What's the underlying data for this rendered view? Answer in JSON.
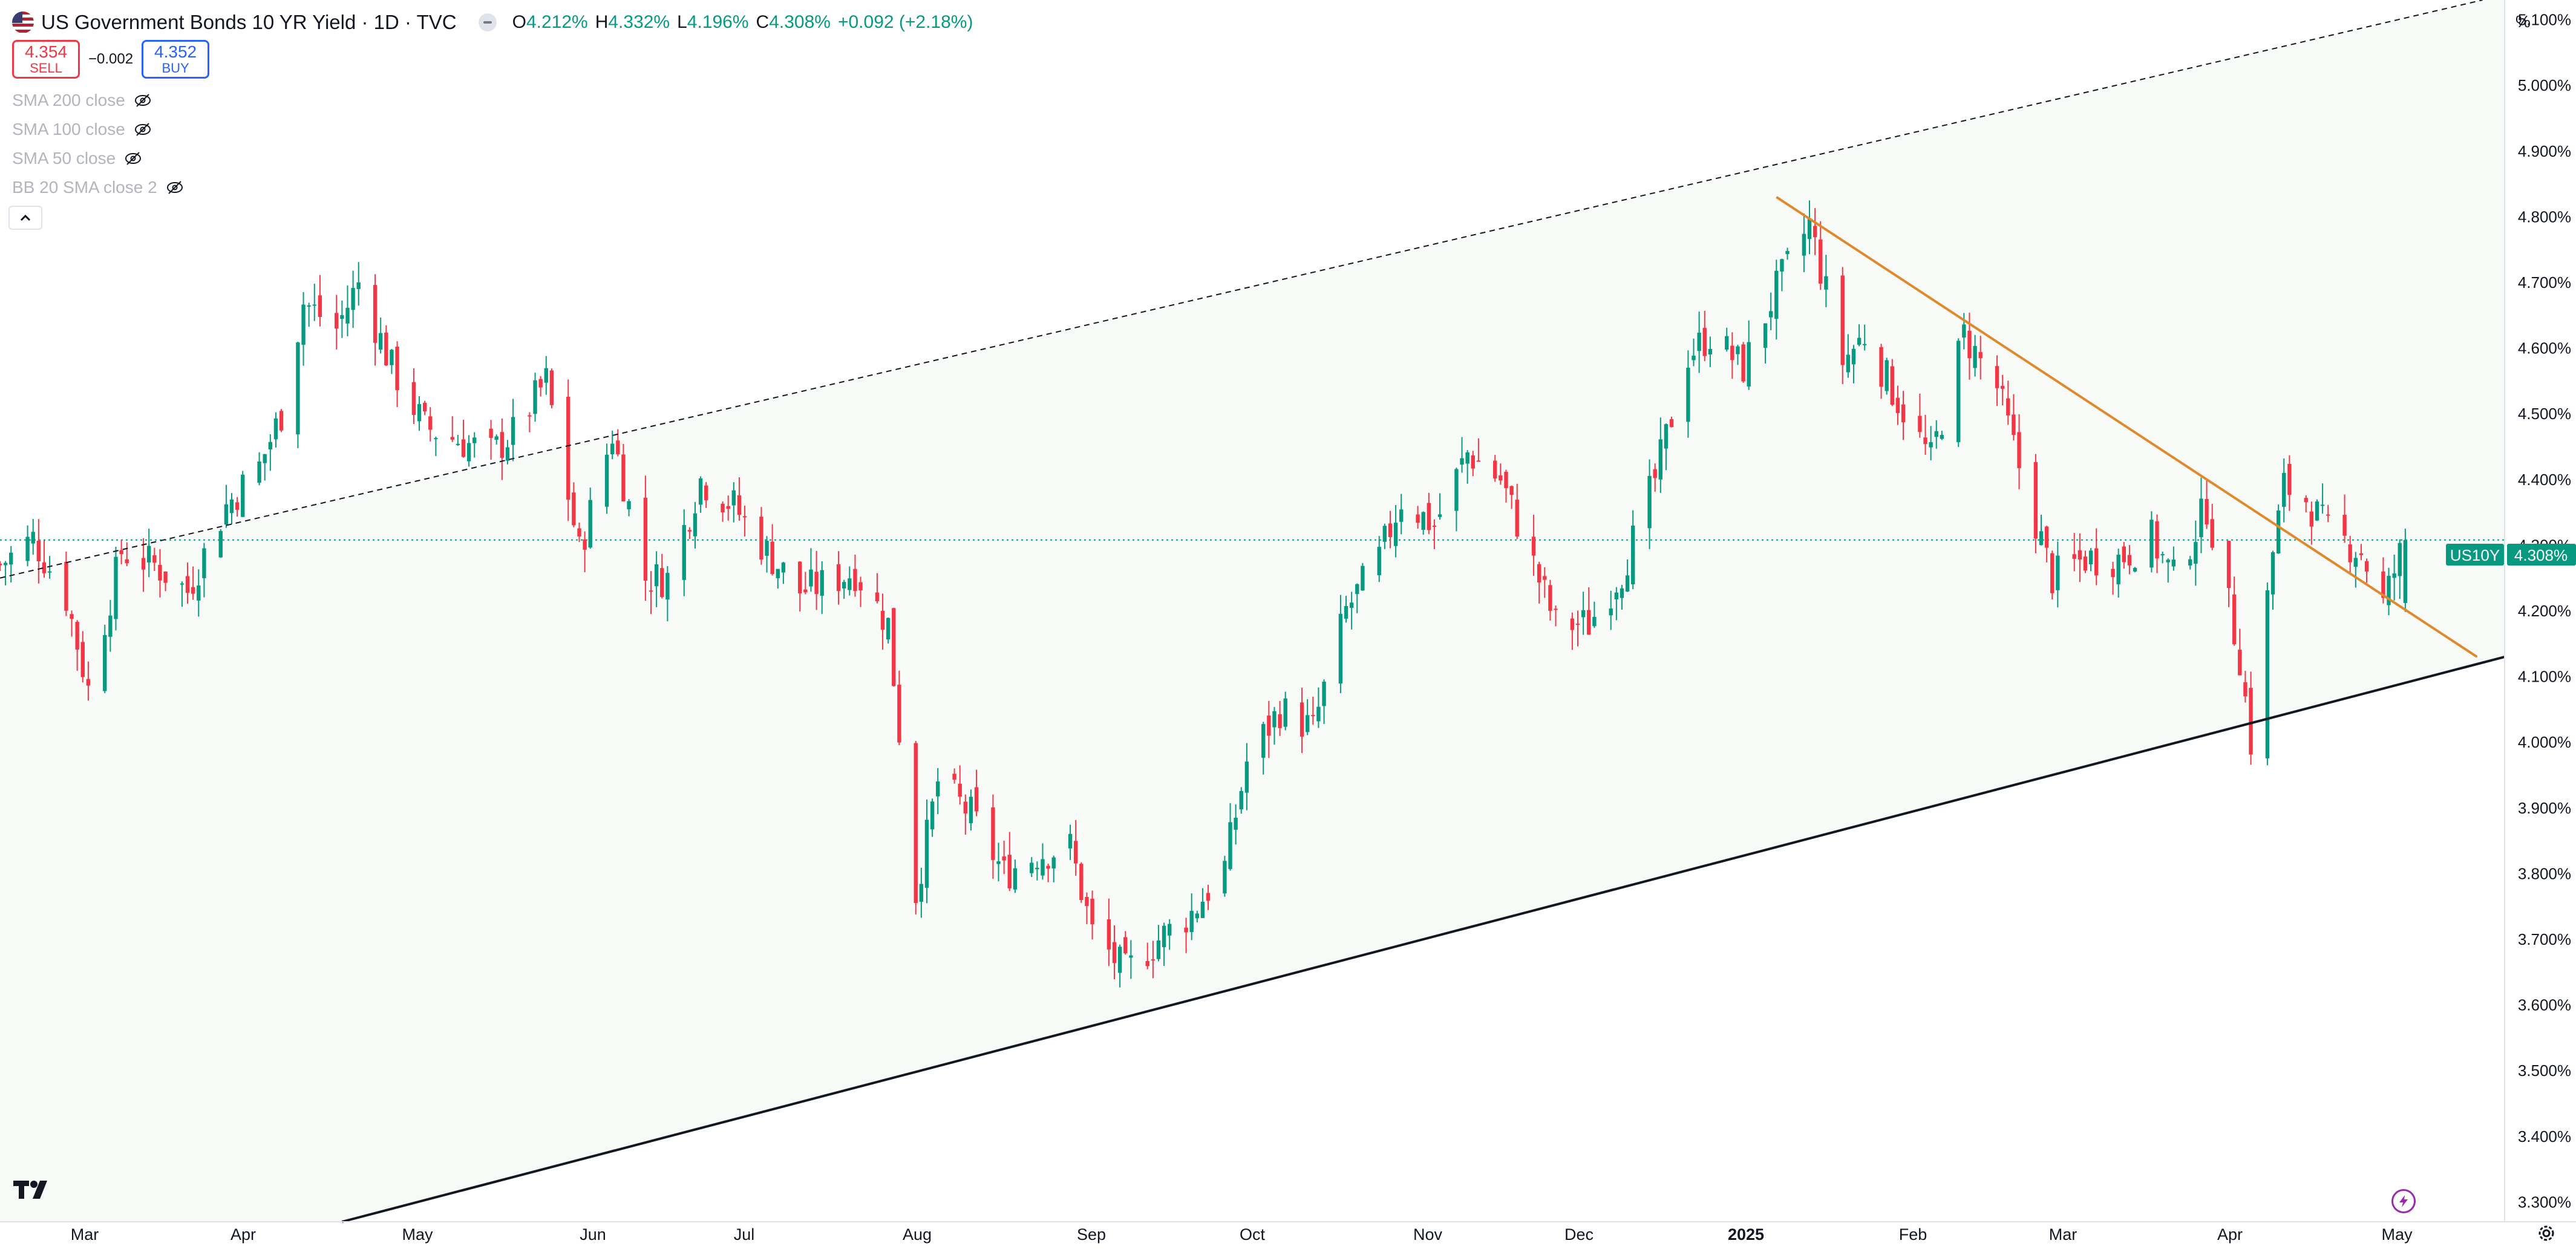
{
  "header": {
    "title": "US Government Bonds 10 YR Yield · 1D · TVC",
    "open_label": "O",
    "open": "4.212%",
    "high_label": "H",
    "high": "4.332%",
    "low_label": "L",
    "low": "4.196%",
    "close_label": "C",
    "close": "4.308%",
    "change": "+0.092 (+2.18%)"
  },
  "trade": {
    "sell_price": "4.354",
    "sell_label": "SELL",
    "spread": "−0.002",
    "buy_price": "4.352",
    "buy_label": "BUY"
  },
  "indicators": [
    {
      "label": "SMA 200 close"
    },
    {
      "label": "SMA 100 close"
    },
    {
      "label": "SMA 50 close"
    },
    {
      "label": "BB 20 SMA close 2"
    }
  ],
  "scale_mode_label": "%",
  "price_tag": {
    "symbol": "US10Y",
    "value": "4.308%"
  },
  "colors": {
    "up": "#089981",
    "down": "#f23645",
    "accent": "#2962ff",
    "orange_trendline": "#e0892c",
    "black_trendline": "#131722",
    "channel_fill": "#f7faf6",
    "price_line": "#089981"
  },
  "icons": [
    "us-flag-icon",
    "market-status-icon",
    "eye-off-icon",
    "chevron-up-icon",
    "tradingview-logo-icon",
    "lightning-icon",
    "gear-icon"
  ],
  "chart_data": {
    "type": "candlestick",
    "y_unit": "%",
    "ylim": [
      3.27,
      5.13
    ],
    "y_ticks": [
      "3.300%",
      "3.400%",
      "3.500%",
      "3.600%",
      "3.700%",
      "3.800%",
      "3.900%",
      "4.000%",
      "4.100%",
      "4.200%",
      "4.300%",
      "4.400%",
      "4.500%",
      "4.600%",
      "4.700%",
      "4.800%",
      "4.900%",
      "5.000%",
      "5.100%"
    ],
    "x_labels": [
      "Mar",
      "Apr",
      "May",
      "Jun",
      "Jul",
      "Aug",
      "Sep",
      "Oct",
      "Nov",
      "Dec",
      "2025",
      "Feb",
      "Mar",
      "Apr",
      "May"
    ],
    "x_range": [
      "2024-02-21",
      "2025-05-20"
    ],
    "grid": false,
    "last_price": 4.308,
    "closes": [
      [
        "2024-02-21",
        4.27
      ],
      [
        "2024-02-27",
        4.31
      ],
      [
        "2024-03-04",
        4.22
      ],
      [
        "2024-03-08",
        4.08
      ],
      [
        "2024-03-14",
        4.29
      ],
      [
        "2024-03-20",
        4.27
      ],
      [
        "2024-03-26",
        4.23
      ],
      [
        "2024-04-02",
        4.36
      ],
      [
        "2024-04-08",
        4.42
      ],
      [
        "2024-04-12",
        4.5
      ],
      [
        "2024-04-16",
        4.67
      ],
      [
        "2024-04-22",
        4.63
      ],
      [
        "2024-04-26",
        4.7
      ],
      [
        "2024-05-02",
        4.57
      ],
      [
        "2024-05-08",
        4.48
      ],
      [
        "2024-05-14",
        4.46
      ],
      [
        "2024-05-20",
        4.44
      ],
      [
        "2024-05-24",
        4.47
      ],
      [
        "2024-05-30",
        4.55
      ],
      [
        "2024-06-05",
        4.29
      ],
      [
        "2024-06-11",
        4.47
      ],
      [
        "2024-06-17",
        4.25
      ],
      [
        "2024-06-21",
        4.25
      ],
      [
        "2024-06-27",
        4.4
      ],
      [
        "2024-07-03",
        4.36
      ],
      [
        "2024-07-09",
        4.29
      ],
      [
        "2024-07-15",
        4.23
      ],
      [
        "2024-07-19",
        4.24
      ],
      [
        "2024-07-25",
        4.26
      ],
      [
        "2024-07-31",
        4.18
      ],
      [
        "2024-08-05",
        3.77
      ],
      [
        "2024-08-09",
        3.94
      ],
      [
        "2024-08-15",
        3.89
      ],
      [
        "2024-08-21",
        3.8
      ],
      [
        "2024-08-27",
        3.83
      ],
      [
        "2024-09-02",
        3.84
      ],
      [
        "2024-09-06",
        3.71
      ],
      [
        "2024-09-12",
        3.65
      ],
      [
        "2024-09-18",
        3.7
      ],
      [
        "2024-09-24",
        3.74
      ],
      [
        "2024-09-30",
        3.81
      ],
      [
        "2024-10-04",
        3.97
      ],
      [
        "2024-10-10",
        4.05
      ],
      [
        "2024-10-16",
        4.02
      ],
      [
        "2024-10-22",
        4.2
      ],
      [
        "2024-10-28",
        4.28
      ],
      [
        "2024-11-01",
        4.37
      ],
      [
        "2024-11-07",
        4.33
      ],
      [
        "2024-11-13",
        4.44
      ],
      [
        "2024-11-19",
        4.4
      ],
      [
        "2024-11-25",
        4.27
      ],
      [
        "2024-11-29",
        4.18
      ],
      [
        "2024-12-05",
        4.18
      ],
      [
        "2024-12-11",
        4.26
      ],
      [
        "2024-12-17",
        4.4
      ],
      [
        "2024-12-23",
        4.59
      ],
      [
        "2024-12-27",
        4.62
      ],
      [
        "2025-01-02",
        4.57
      ],
      [
        "2025-01-08",
        4.69
      ],
      [
        "2025-01-14",
        4.79
      ],
      [
        "2025-01-20",
        4.58
      ],
      [
        "2025-01-24",
        4.62
      ],
      [
        "2025-01-30",
        4.52
      ],
      [
        "2025-02-05",
        4.43
      ],
      [
        "2025-02-11",
        4.62
      ],
      [
        "2025-02-17",
        4.54
      ],
      [
        "2025-02-21",
        4.42
      ],
      [
        "2025-02-27",
        4.25
      ],
      [
        "2025-03-05",
        4.28
      ],
      [
        "2025-03-11",
        4.28
      ],
      [
        "2025-03-17",
        4.31
      ],
      [
        "2025-03-21",
        4.25
      ],
      [
        "2025-03-27",
        4.36
      ],
      [
        "2025-04-02",
        4.13
      ],
      [
        "2025-04-04",
        4.0
      ],
      [
        "2025-04-08",
        4.29
      ],
      [
        "2025-04-10",
        4.39
      ],
      [
        "2025-04-14",
        4.37
      ],
      [
        "2025-04-18",
        4.32
      ],
      [
        "2025-04-24",
        4.29
      ],
      [
        "2025-04-28",
        4.21
      ],
      [
        "2025-05-02",
        4.31
      ]
    ],
    "lines": [
      {
        "style": "dashed",
        "from": [
          "2024-02-21",
          4.25
        ],
        "to": [
          "2025-05-16",
          5.13
        ]
      },
      {
        "style": "solid",
        "from": [
          "2024-04-23",
          3.27
        ],
        "to": [
          "2025-05-20",
          4.13
        ]
      },
      {
        "style": "solid-orange",
        "from": [
          "2025-01-08",
          4.83
        ],
        "to": [
          "2025-05-15",
          4.13
        ]
      }
    ]
  }
}
